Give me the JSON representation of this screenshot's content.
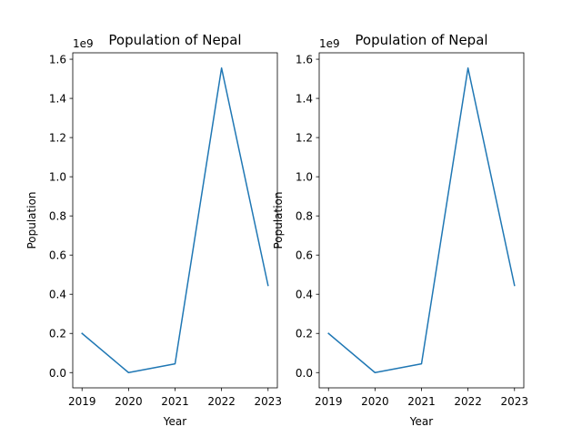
{
  "chart_data": [
    {
      "type": "line",
      "title": "Population of Nepal",
      "xlabel": "Year",
      "ylabel": "Population",
      "y_offset_label": "1e9",
      "x": [
        2019,
        2020,
        2021,
        2022,
        2023
      ],
      "series": [
        {
          "values": [
            0.2,
            0.0,
            0.045,
            1.555,
            0.445
          ],
          "color": "#1f77b4"
        }
      ],
      "x_ticks": [
        "2019",
        "2020",
        "2021",
        "2022",
        "2023"
      ],
      "y_ticks": [
        0.0,
        0.2,
        0.4,
        0.6,
        0.8,
        1.0,
        1.2,
        1.4,
        1.6
      ],
      "y_tick_labels": [
        "0.0",
        "0.2",
        "0.4",
        "0.6",
        "0.8",
        "1.0",
        "1.2",
        "1.4",
        "1.6"
      ],
      "xlim": [
        2018.8,
        2023.2
      ],
      "ylim": [
        -0.0778,
        1.6328
      ],
      "grid": false,
      "legend": "none"
    },
    {
      "type": "line",
      "title": "Population of Nepal",
      "xlabel": "Year",
      "ylabel": "Population",
      "y_offset_label": "1e9",
      "x": [
        2019,
        2020,
        2021,
        2022,
        2023
      ],
      "series": [
        {
          "values": [
            0.2,
            0.0,
            0.045,
            1.555,
            0.445
          ],
          "color": "#1f77b4"
        }
      ],
      "x_ticks": [
        "2019",
        "2020",
        "2021",
        "2022",
        "2023"
      ],
      "y_ticks": [
        0.0,
        0.2,
        0.4,
        0.6,
        0.8,
        1.0,
        1.2,
        1.4,
        1.6
      ],
      "y_tick_labels": [
        "0.0",
        "0.2",
        "0.4",
        "0.6",
        "0.8",
        "1.0",
        "1.2",
        "1.4",
        "1.6"
      ],
      "xlim": [
        2018.8,
        2023.2
      ],
      "ylim": [
        -0.0778,
        1.6328
      ],
      "grid": false,
      "legend": "none"
    }
  ]
}
